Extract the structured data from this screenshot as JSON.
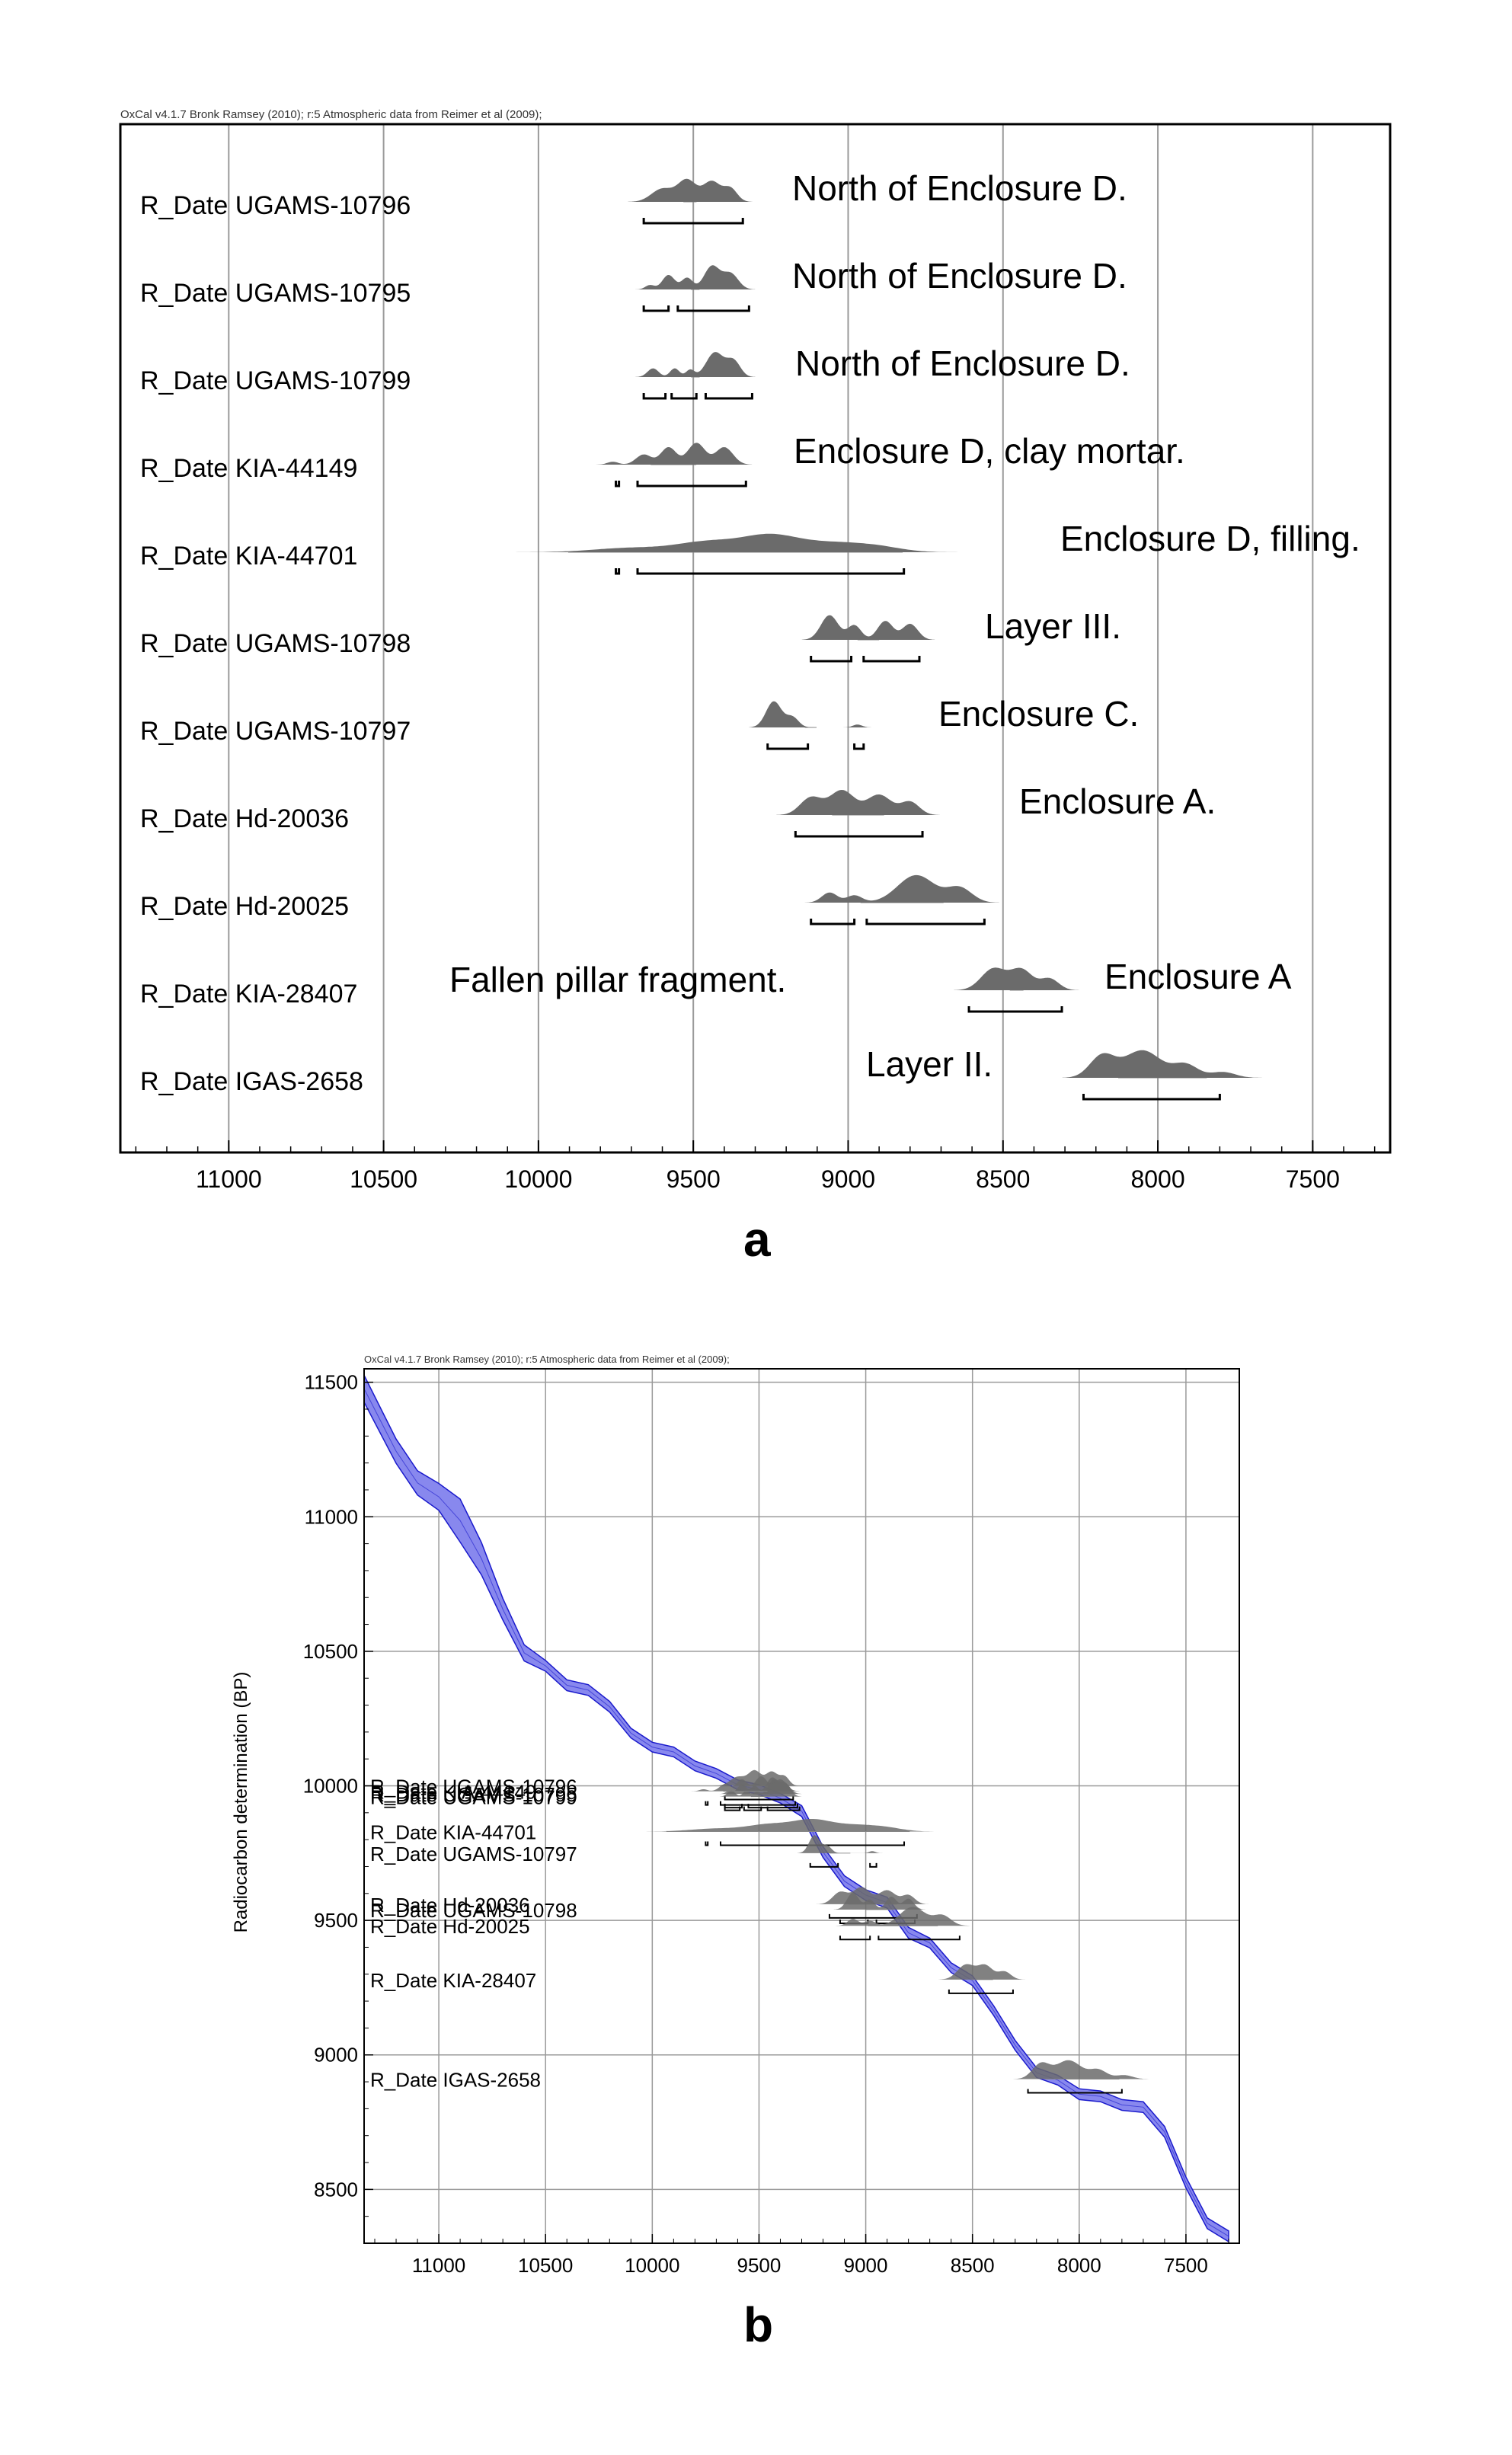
{
  "panel_a": {
    "panel_label": "a"
  },
  "panel_b": {
    "panel_label": "b"
  },
  "colors": {
    "distribution": "#6b6b6b",
    "curve_band": "#8888ee",
    "curve_line": "#1a1acc",
    "grid": "#9a9a9a"
  },
  "chart_data": [
    {
      "type": "density",
      "credit": "OxCal v4.1.7 Bronk Ramsey (2010); r:5 Atmospheric data from Reimer et al (2009);",
      "xlim": [
        11350,
        7250
      ],
      "x_ticks": [
        11000,
        10500,
        10000,
        9500,
        9000,
        8500,
        8000,
        7500
      ],
      "grid": true,
      "series": [
        {
          "name": "R_Date UGAMS-10796",
          "annotation": "North of Enclosure D.",
          "peaks": [
            [
              9600,
              35,
              0.45
            ],
            [
              9520,
              30,
              0.75
            ],
            [
              9440,
              28,
              0.7
            ],
            [
              9380,
              22,
              0.45
            ]
          ],
          "ranges": [
            [
              9660,
              9340
            ]
          ]
        },
        {
          "name": "R_Date UGAMS-10795",
          "annotation": "North of Enclosure D.",
          "peaks": [
            [
              9640,
              15,
              0.15
            ],
            [
              9580,
              20,
              0.5
            ],
            [
              9520,
              18,
              0.4
            ],
            [
              9440,
              25,
              0.8
            ],
            [
              9380,
              25,
              0.55
            ]
          ],
          "ranges": [
            [
              9660,
              9580
            ],
            [
              9550,
              9320
            ]
          ]
        },
        {
          "name": "R_Date UGAMS-10799",
          "annotation": "North of Enclosure D.",
          "peaks": [
            [
              9630,
              18,
              0.3
            ],
            [
              9560,
              15,
              0.3
            ],
            [
              9510,
              14,
              0.25
            ],
            [
              9430,
              28,
              0.85
            ],
            [
              9370,
              22,
              0.55
            ]
          ],
          "ranges": [
            [
              9660,
              9590
            ],
            [
              9570,
              9490
            ],
            [
              9460,
              9310
            ]
          ]
        },
        {
          "name": "R_Date KIA-44149",
          "annotation": "Enclosure D, clay mortar.",
          "peaks": [
            [
              9760,
              18,
              0.1
            ],
            [
              9660,
              25,
              0.35
            ],
            [
              9580,
              25,
              0.6
            ],
            [
              9490,
              28,
              0.75
            ],
            [
              9400,
              28,
              0.6
            ]
          ],
          "ranges": [
            [
              9750,
              9740
            ],
            [
              9680,
              9330
            ]
          ]
        },
        {
          "name": "R_Date KIA-44701",
          "annotation": "Enclosure D, filling.",
          "peaks": [
            [
              9700,
              120,
              0.15
            ],
            [
              9450,
              100,
              0.35
            ],
            [
              9250,
              90,
              0.55
            ],
            [
              9050,
              100,
              0.3
            ],
            [
              8900,
              80,
              0.15
            ]
          ],
          "ranges": [
            [
              9750,
              9740
            ],
            [
              9680,
              8820
            ]
          ]
        },
        {
          "name": "R_Date UGAMS-10798",
          "annotation": "Layer III.",
          "peaks": [
            [
              9060,
              28,
              0.85
            ],
            [
              8980,
              22,
              0.5
            ],
            [
              8880,
              25,
              0.65
            ],
            [
              8800,
              25,
              0.55
            ]
          ],
          "ranges": [
            [
              9120,
              8990
            ],
            [
              8950,
              8770
            ]
          ]
        },
        {
          "name": "R_Date UGAMS-10797",
          "annotation": "Enclosure C.",
          "peaks": [
            [
              9240,
              25,
              0.9
            ],
            [
              9180,
              20,
              0.35
            ],
            [
              8970,
              15,
              0.1
            ]
          ],
          "ranges": [
            [
              9260,
              9130
            ],
            [
              8980,
              8950
            ]
          ]
        },
        {
          "name": "R_Date Hd-20036",
          "annotation": "Enclosure A.",
          "peaks": [
            [
              9120,
              35,
              0.6
            ],
            [
              9020,
              40,
              0.85
            ],
            [
              8900,
              40,
              0.7
            ],
            [
              8800,
              30,
              0.45
            ]
          ],
          "ranges": [
            [
              9170,
              8760
            ]
          ]
        },
        {
          "name": "R_Date Hd-20025",
          "annotation": "",
          "peaks": [
            [
              9060,
              25,
              0.35
            ],
            [
              8980,
              25,
              0.25
            ],
            [
              8780,
              60,
              0.95
            ],
            [
              8640,
              40,
              0.5
            ]
          ],
          "ranges": [
            [
              9120,
              8980
            ],
            [
              8940,
              8560
            ]
          ]
        },
        {
          "name": "R_Date KIA-28407",
          "annotation": "Enclosure A",
          "annotation_left": "Fallen pillar fragment.",
          "peaks": [
            [
              8530,
              40,
              0.75
            ],
            [
              8440,
              35,
              0.7
            ],
            [
              8350,
              30,
              0.4
            ]
          ],
          "ranges": [
            [
              8610,
              8310
            ]
          ]
        },
        {
          "name": "R_Date IGAS-2658",
          "annotation": "Layer II.",
          "peaks": [
            [
              8180,
              40,
              0.75
            ],
            [
              8050,
              60,
              0.95
            ],
            [
              7910,
              40,
              0.45
            ],
            [
              7790,
              40,
              0.2
            ]
          ],
          "ranges": [
            [
              8240,
              7800
            ]
          ]
        }
      ]
    },
    {
      "type": "area",
      "credit": "OxCal v4.1.7 Bronk Ramsey (2010); r:5 Atmospheric data from Reimer et al (2009);",
      "xlim": [
        11350,
        7250
      ],
      "ylim": [
        8300,
        11550
      ],
      "x_ticks": [
        11000,
        10500,
        10000,
        9500,
        9000,
        8500,
        8000,
        7500
      ],
      "y_ticks": [
        11500,
        11000,
        10500,
        10000,
        9500,
        9000,
        8500
      ],
      "ylabel": "Radiocarbon determination (BP)",
      "grid": true,
      "calibration_curve": {
        "x": [
          11350,
          11200,
          11100,
          11000,
          10900,
          10800,
          10700,
          10600,
          10500,
          10400,
          10300,
          10200,
          10100,
          10000,
          9900,
          9800,
          9700,
          9600,
          9500,
          9400,
          9300,
          9200,
          9100,
          9000,
          8900,
          8800,
          8700,
          8600,
          8500,
          8400,
          8300,
          8200,
          8100,
          8000,
          7900,
          7800,
          7700,
          7600,
          7500,
          7400,
          7300
        ],
        "y": [
          11470,
          11250,
          11120,
          11080,
          10980,
          10850,
          10650,
          10500,
          10440,
          10380,
          10350,
          10300,
          10190,
          10150,
          10120,
          10080,
          10040,
          10010,
          9980,
          9960,
          9900,
          9760,
          9640,
          9600,
          9560,
          9460,
          9410,
          9330,
          9270,
          9170,
          9030,
          8940,
          8900,
          8860,
          8840,
          8820,
          8800,
          8720,
          8520,
          8380,
          8320
        ],
        "halfwidth": [
          50,
          45,
          45,
          50,
          80,
          60,
          40,
          30,
          20,
          20,
          20,
          20,
          18,
          18,
          18,
          18,
          18,
          18,
          18,
          18,
          20,
          20,
          20,
          20,
          20,
          20,
          18,
          18,
          18,
          18,
          18,
          18,
          18,
          20,
          20,
          20,
          20,
          20,
          20,
          20,
          20
        ]
      },
      "series": [
        {
          "name": "R_Date UGAMS-10796",
          "c14": 10000
        },
        {
          "name": "R_Date UGAMS-10795",
          "c14": 9970
        },
        {
          "name": "R_Date UGAMS-10799",
          "c14": 9960
        },
        {
          "name": "R_Date KIA-44149",
          "c14": 9980
        },
        {
          "name": "R_Date KIA-44701",
          "c14": 9830
        },
        {
          "name": "R_Date UGAMS-10797",
          "c14": 9750
        },
        {
          "name": "R_Date Hd-20036",
          "c14": 9560
        },
        {
          "name": "R_Date UGAMS-10798",
          "c14": 9540
        },
        {
          "name": "R_Date Hd-20025",
          "c14": 9480
        },
        {
          "name": "R_Date KIA-28407",
          "c14": 9280
        },
        {
          "name": "R_Date IGAS-2658",
          "c14": 8910
        }
      ]
    }
  ]
}
